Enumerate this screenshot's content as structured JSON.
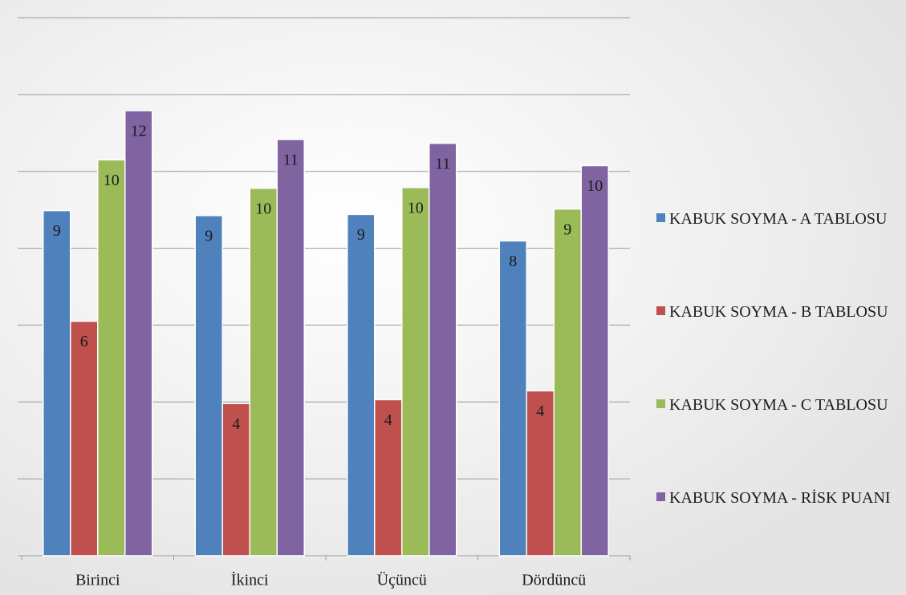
{
  "chart_data": {
    "type": "bar",
    "categories": [
      "Birinci",
      "İkinci",
      "Üçüncü",
      "Dördüncü"
    ],
    "series": [
      {
        "name": "KABUK SOYMA - A TABLOSU",
        "color": "#4f81bd",
        "values": [
          8.98,
          8.85,
          8.88,
          8.19
        ],
        "value_labels": [
          "9",
          "9",
          "9",
          "8"
        ]
      },
      {
        "name": "KABUK SOYMA - B TABLOSU",
        "color": "#c0504d",
        "values": [
          6.1,
          3.96,
          4.06,
          4.29
        ],
        "value_labels": [
          "6",
          "4",
          "4",
          "4"
        ]
      },
      {
        "name": "KABUK SOYMA - C TABLOSU",
        "color": "#9bbb59",
        "values": [
          10.3,
          9.56,
          9.58,
          9.02
        ],
        "value_labels": [
          "10",
          "10",
          "10",
          "9"
        ]
      },
      {
        "name": "KABUK SOYMA - RİSK PUANI",
        "color": "#8064a2",
        "values": [
          11.58,
          10.83,
          10.73,
          10.15
        ],
        "value_labels": [
          "12",
          "11",
          "11",
          "10"
        ]
      }
    ],
    "ylim": [
      0,
      14
    ],
    "yticks": [
      0,
      2,
      4,
      6,
      8,
      10,
      12,
      14
    ],
    "grid": true,
    "legend": "right"
  }
}
